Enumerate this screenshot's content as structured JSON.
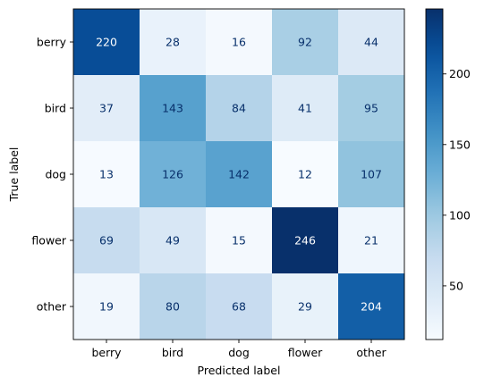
{
  "chart_data": {
    "type": "heatmap",
    "title": "",
    "xlabel": "Predicted label",
    "ylabel": "True label",
    "x_categories": [
      "berry",
      "bird",
      "dog",
      "flower",
      "other"
    ],
    "y_categories": [
      "berry",
      "bird",
      "dog",
      "flower",
      "other"
    ],
    "values": [
      [
        220,
        28,
        16,
        92,
        44
      ],
      [
        37,
        143,
        84,
        41,
        95
      ],
      [
        13,
        126,
        142,
        12,
        107
      ],
      [
        69,
        49,
        15,
        246,
        21
      ],
      [
        19,
        80,
        68,
        29,
        204
      ]
    ],
    "colormap": "Blues",
    "colorbar": {
      "range": [
        12,
        246
      ],
      "ticks": [
        50,
        100,
        150,
        200
      ],
      "tick_labels": [
        "50",
        "100",
        "150",
        "200"
      ]
    },
    "grid": false,
    "legend": "colorbar-right"
  }
}
